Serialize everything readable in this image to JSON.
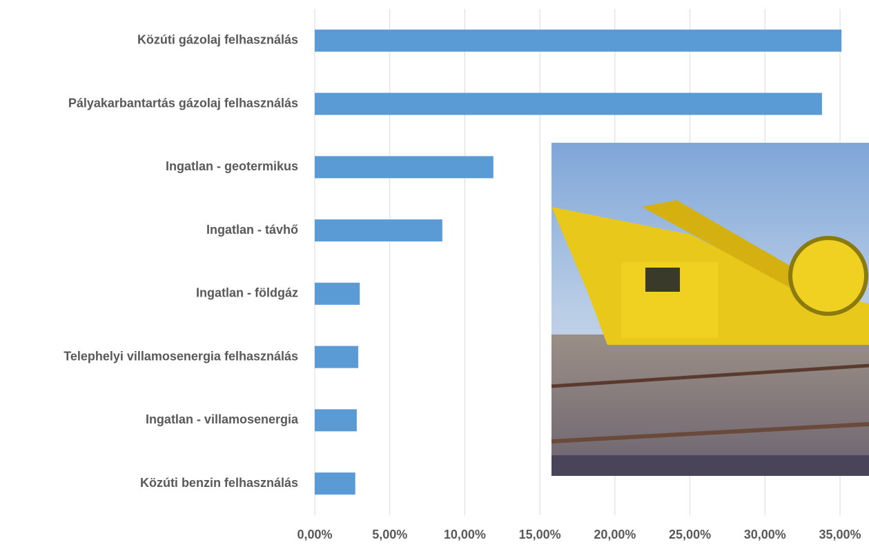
{
  "chart_data": {
    "type": "barh",
    "categories": [
      "Közúti gázolaj felhasználás",
      "Pályakarbantartás gázolaj felhasználás",
      "Ingatlan - geotermikus",
      "Ingatlan - távhő",
      "Ingatlan - földgáz",
      "Telephelyi villamosenergia felhasználás",
      "Ingatlan - villamosenergia",
      "Közúti benzin felhasználás"
    ],
    "values": [
      35.1,
      33.8,
      11.9,
      8.5,
      3.0,
      2.9,
      2.8,
      2.7
    ],
    "color": "#5b9bd5",
    "xlim": [
      0,
      35
    ],
    "xticks": [
      {
        "value": 0,
        "label": "0,00%"
      },
      {
        "value": 5,
        "label": "5,00%"
      },
      {
        "value": 10,
        "label": "10,00%"
      },
      {
        "value": 15,
        "label": "15,00%"
      },
      {
        "value": 20,
        "label": "20,00%"
      },
      {
        "value": 25,
        "label": "25,00%"
      },
      {
        "value": 30,
        "label": "30,00%"
      },
      {
        "value": 35,
        "label": "35,00%"
      }
    ],
    "grid": true
  }
}
